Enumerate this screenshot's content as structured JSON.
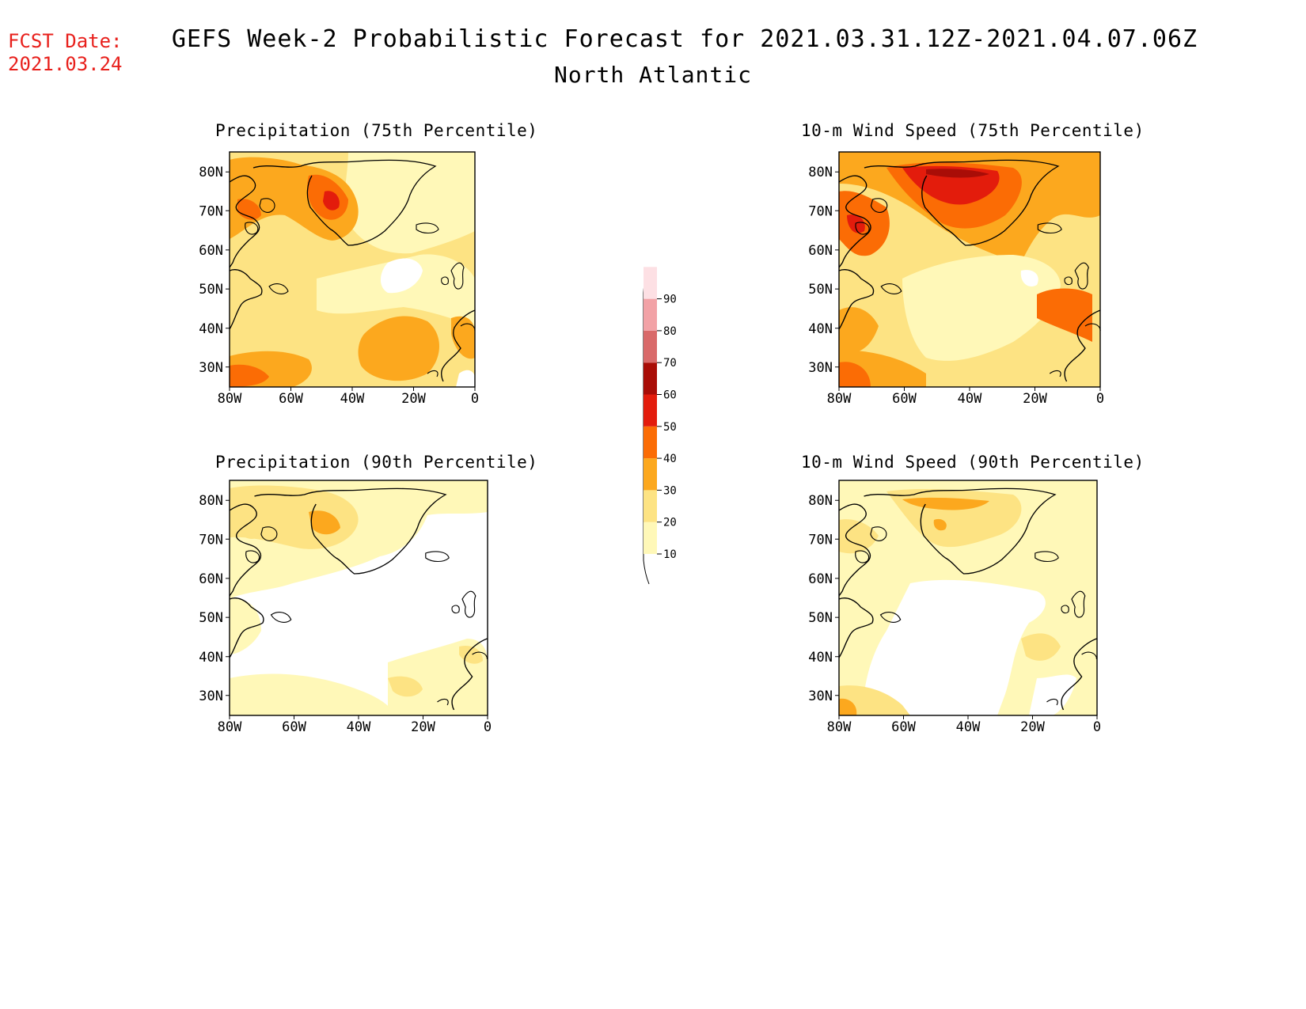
{
  "header": {
    "fcst_label": "FCST Date:",
    "fcst_date": "2021.03.24",
    "title": "GEFS Week-2 Probabilistic Forecast for 2021.03.31.12Z-2021.04.07.06Z",
    "region": "North Atlantic"
  },
  "panels": [
    {
      "title": "Precipitation (75th Percentile)"
    },
    {
      "title": "10-m Wind Speed (75th Percentile)"
    },
    {
      "title": "Precipitation (90th Percentile)"
    },
    {
      "title": "10-m Wind Speed (90th Percentile)"
    }
  ],
  "axes": {
    "lat_ticks": [
      "80N",
      "70N",
      "60N",
      "50N",
      "40N",
      "30N"
    ],
    "lon_ticks": [
      "80W",
      "60W",
      "40W",
      "20W",
      "0"
    ]
  },
  "colorbar": {
    "levels": [
      "10",
      "20",
      "30",
      "40",
      "50",
      "60",
      "70",
      "80",
      "90"
    ],
    "colors": [
      "#fff8b8",
      "#fde383",
      "#fca81e",
      "#fb6c05",
      "#e31c0c",
      "#a90d07",
      "#d96a6a",
      "#f2a2a6",
      "#fde0e4"
    ]
  }
}
